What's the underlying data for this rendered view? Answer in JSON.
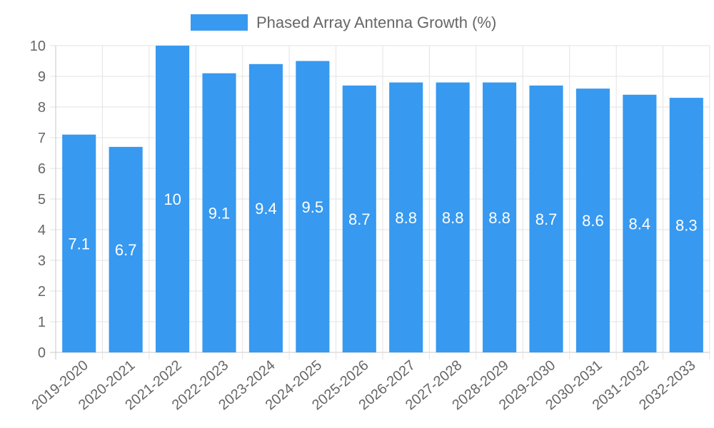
{
  "chart_data": {
    "type": "bar",
    "title": "",
    "xlabel": "",
    "ylabel": "",
    "categories": [
      "2019-2020",
      "2020-2021",
      "2021-2022",
      "2022-2023",
      "2023-2024",
      "2024-2025",
      "2025-2026",
      "2026-2027",
      "2027-2028",
      "2028-2029",
      "2029-2030",
      "2030-2031",
      "2031-2032",
      "2032-2033"
    ],
    "series": [
      {
        "name": "Phased Array Antenna Growth (%)",
        "color": "#3799f0",
        "values": [
          7.1,
          6.7,
          10,
          9.1,
          9.4,
          9.5,
          8.7,
          8.8,
          8.8,
          8.8,
          8.7,
          8.6,
          8.4,
          8.3
        ]
      }
    ],
    "ylim": [
      0,
      10
    ],
    "yticks": [
      0,
      1,
      2,
      3,
      4,
      5,
      6,
      7,
      8,
      9,
      10
    ],
    "grid": true,
    "legend_position": "top-center",
    "data_labels": true
  }
}
